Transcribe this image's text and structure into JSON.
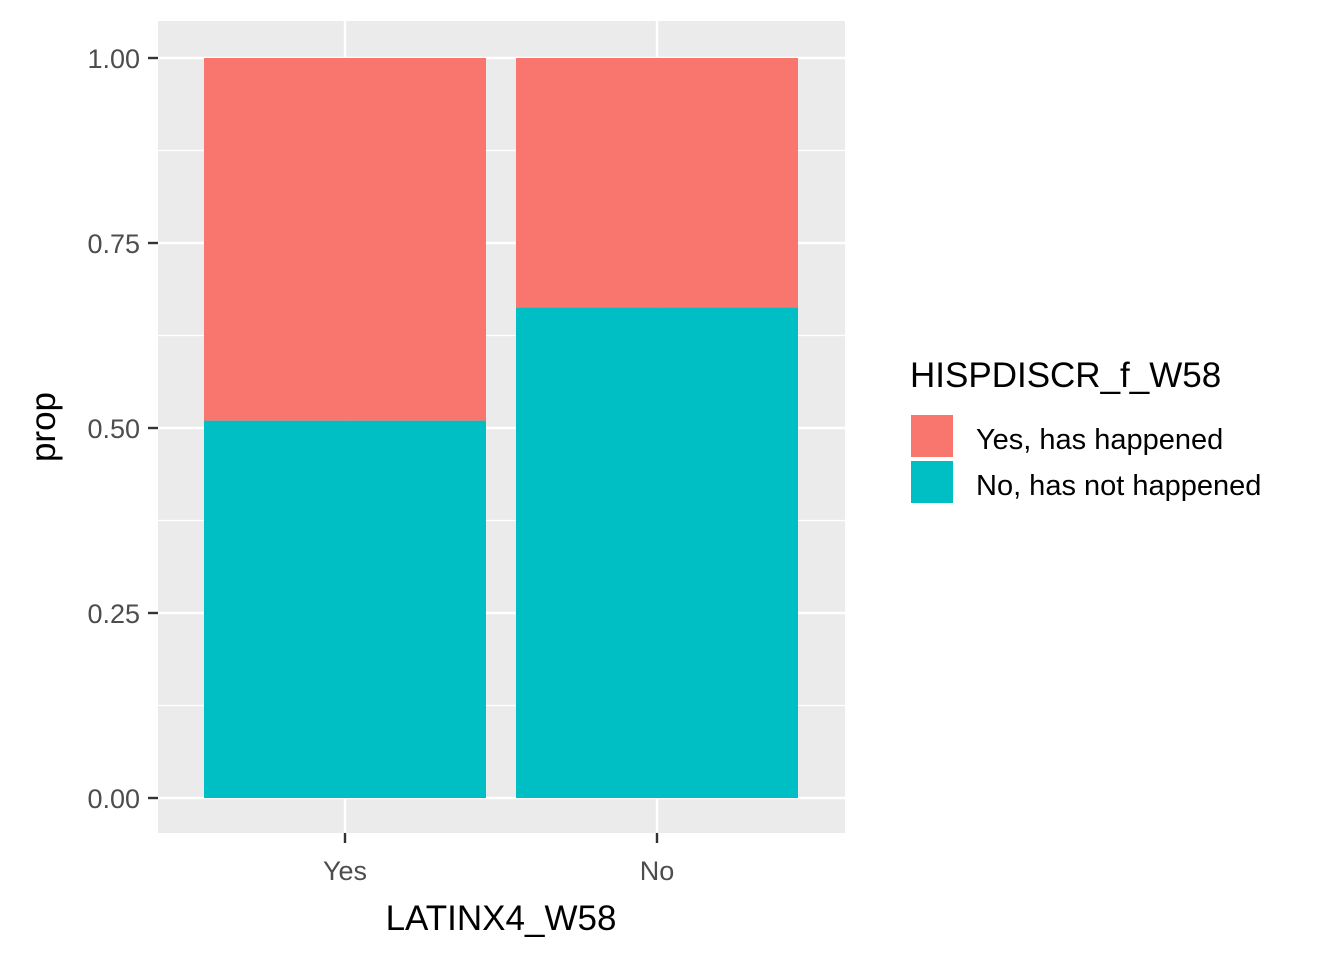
{
  "chart_data": {
    "type": "bar",
    "stacked": true,
    "xlabel": "LATINX4_W58",
    "ylabel": "prop",
    "categories": [
      "Yes",
      "No"
    ],
    "ylim": [
      0,
      1
    ],
    "yticks": [
      "0.00",
      "0.25",
      "0.50",
      "0.75",
      "1.00"
    ],
    "ytick_values": [
      0,
      0.25,
      0.5,
      0.75,
      1.0
    ],
    "grid": true,
    "legend": {
      "title": "HISPDISCR_f_W58",
      "placement": "right",
      "items": [
        "Yes, has happened",
        "No, has not happened"
      ]
    },
    "series": [
      {
        "name": "Yes, has happened",
        "color": "#F8766D",
        "values": [
          0.49,
          0.337
        ]
      },
      {
        "name": "No, has not happened",
        "color": "#00BFC4",
        "values": [
          0.51,
          0.663
        ]
      }
    ]
  }
}
